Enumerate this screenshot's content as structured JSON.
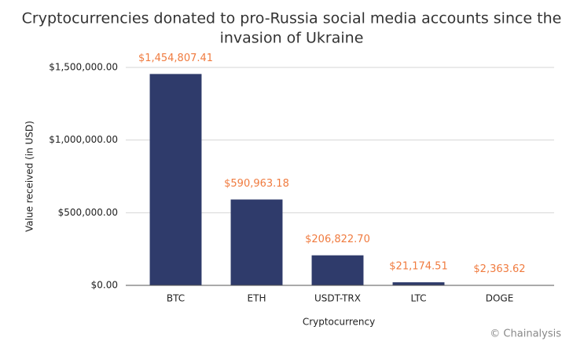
{
  "chart_data": {
    "type": "bar",
    "title": "Cryptocurrencies donated to pro-Russia social media accounts since the",
    "title_line2": "invasion of Ukraine",
    "x_label": "Cryptocurrency",
    "y_label": "Value received (in USD)",
    "source": "© Chainalysis",
    "categories": [
      "BTC",
      "ETH",
      "USDT-TRX",
      "LTC",
      "DOGE"
    ],
    "values": [
      1454807.41,
      590963.18,
      206822.7,
      21174.51,
      2363.62
    ],
    "value_labels": [
      "$1,454,807.41",
      "$590,963.18",
      "$206,822.70",
      "$21,174.51",
      "$2,363.62"
    ],
    "color": "#2f3b6b",
    "value_label_color": "#f07b3f",
    "ylim": [
      0,
      1500000
    ],
    "yticks": [
      {
        "value": 0,
        "label": "$0.00"
      },
      {
        "value": 500000,
        "label": "$500,000.00"
      },
      {
        "value": 1000000,
        "label": "$1,000,000.00"
      },
      {
        "value": 1500000,
        "label": "$1,500,000.00"
      }
    ],
    "grid": true
  }
}
